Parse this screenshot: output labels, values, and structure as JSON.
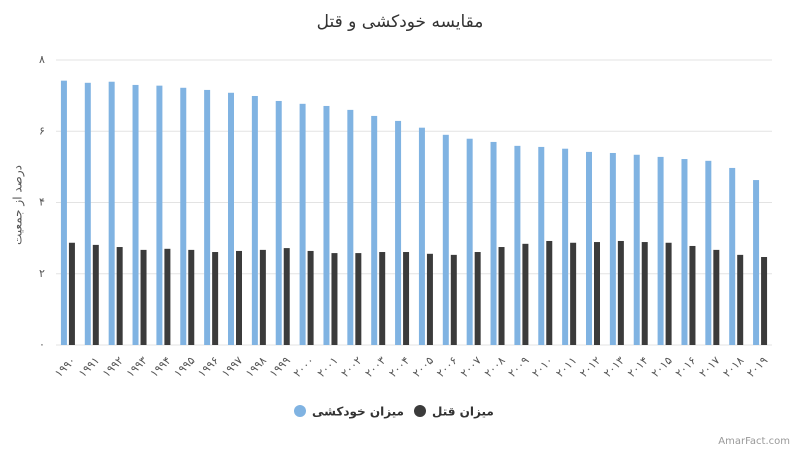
{
  "chart_data": {
    "type": "bar",
    "title": "مقایسه خودکشی و قتل",
    "y_label": "درصد از جمعیت",
    "categories": [
      "۱۹۹۰",
      "۱۹۹۱",
      "۱۹۹۲",
      "۱۹۹۳",
      "۱۹۹۴",
      "۱۹۹۵",
      "۱۹۹۶",
      "۱۹۹۷",
      "۱۹۹۸",
      "۱۹۹۹",
      "۲۰۰۰",
      "۲۰۰۱",
      "۲۰۰۲",
      "۲۰۰۳",
      "۲۰۰۴",
      "۲۰۰۵",
      "۲۰۰۶",
      "۲۰۰۷",
      "۲۰۰۸",
      "۲۰۰۹",
      "۲۰۱۰",
      "۲۰۱۱",
      "۲۰۱۲",
      "۲۰۱۳",
      "۲۰۱۴",
      "۲۰۱۵",
      "۲۰۱۶",
      "۲۰۱۷",
      "۲۰۱۸",
      "۲۰۱۹"
    ],
    "series": [
      {
        "name": "میزان خودکشی",
        "color": "#80b3e2",
        "values": [
          7.42,
          7.36,
          7.39,
          7.3,
          7.28,
          7.22,
          7.16,
          7.08,
          6.99,
          6.85,
          6.77,
          6.71,
          6.6,
          6.43,
          6.29,
          6.1,
          5.9,
          5.79,
          5.7,
          5.59,
          5.56,
          5.51,
          5.42,
          5.39,
          5.34,
          5.28,
          5.22,
          5.17,
          4.97,
          4.63
        ]
      },
      {
        "name": "میزان قتل",
        "color": "#3b3b3b",
        "values": [
          2.87,
          2.81,
          2.75,
          2.67,
          2.7,
          2.67,
          2.61,
          2.64,
          2.67,
          2.72,
          2.64,
          2.58,
          2.58,
          2.61,
          2.61,
          2.56,
          2.53,
          2.61,
          2.75,
          2.84,
          2.92,
          2.87,
          2.89,
          2.92,
          2.89,
          2.87,
          2.78,
          2.67,
          2.53,
          2.47
        ]
      }
    ],
    "ylim": [
      0,
      8
    ],
    "yticks": [
      {
        "value": 0,
        "label": "۰"
      },
      {
        "value": 2,
        "label": "۲"
      },
      {
        "value": 4,
        "label": "۴"
      },
      {
        "value": 6,
        "label": "۶"
      },
      {
        "value": 8,
        "label": "۸"
      }
    ],
    "grid": true,
    "legend": "bottom",
    "watermark": "AmarFact.com"
  }
}
